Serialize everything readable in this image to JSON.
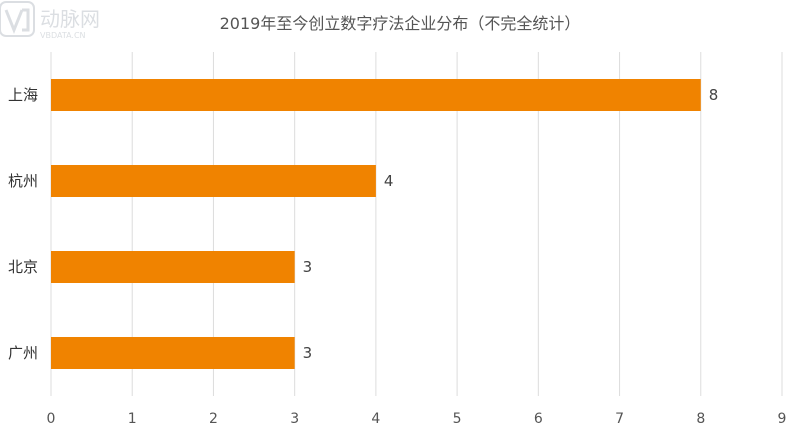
{
  "chart_data": {
    "type": "bar",
    "orientation": "horizontal",
    "title": "2019年至今创立数字疗法企业分布（不完全统计）",
    "categories": [
      "上海",
      "杭州",
      "北京",
      "广州"
    ],
    "values": [
      8,
      4,
      3,
      3
    ],
    "xlim": [
      0,
      9
    ],
    "xticks": [
      0,
      1,
      2,
      3,
      4,
      5,
      6,
      7,
      8,
      9
    ],
    "xlabel": "",
    "ylabel": "",
    "grid": "vertical",
    "legend": "none",
    "bar_color": "#f08300"
  },
  "watermark": {
    "text": "动脉网",
    "subtext": "VBDATA.CN"
  }
}
